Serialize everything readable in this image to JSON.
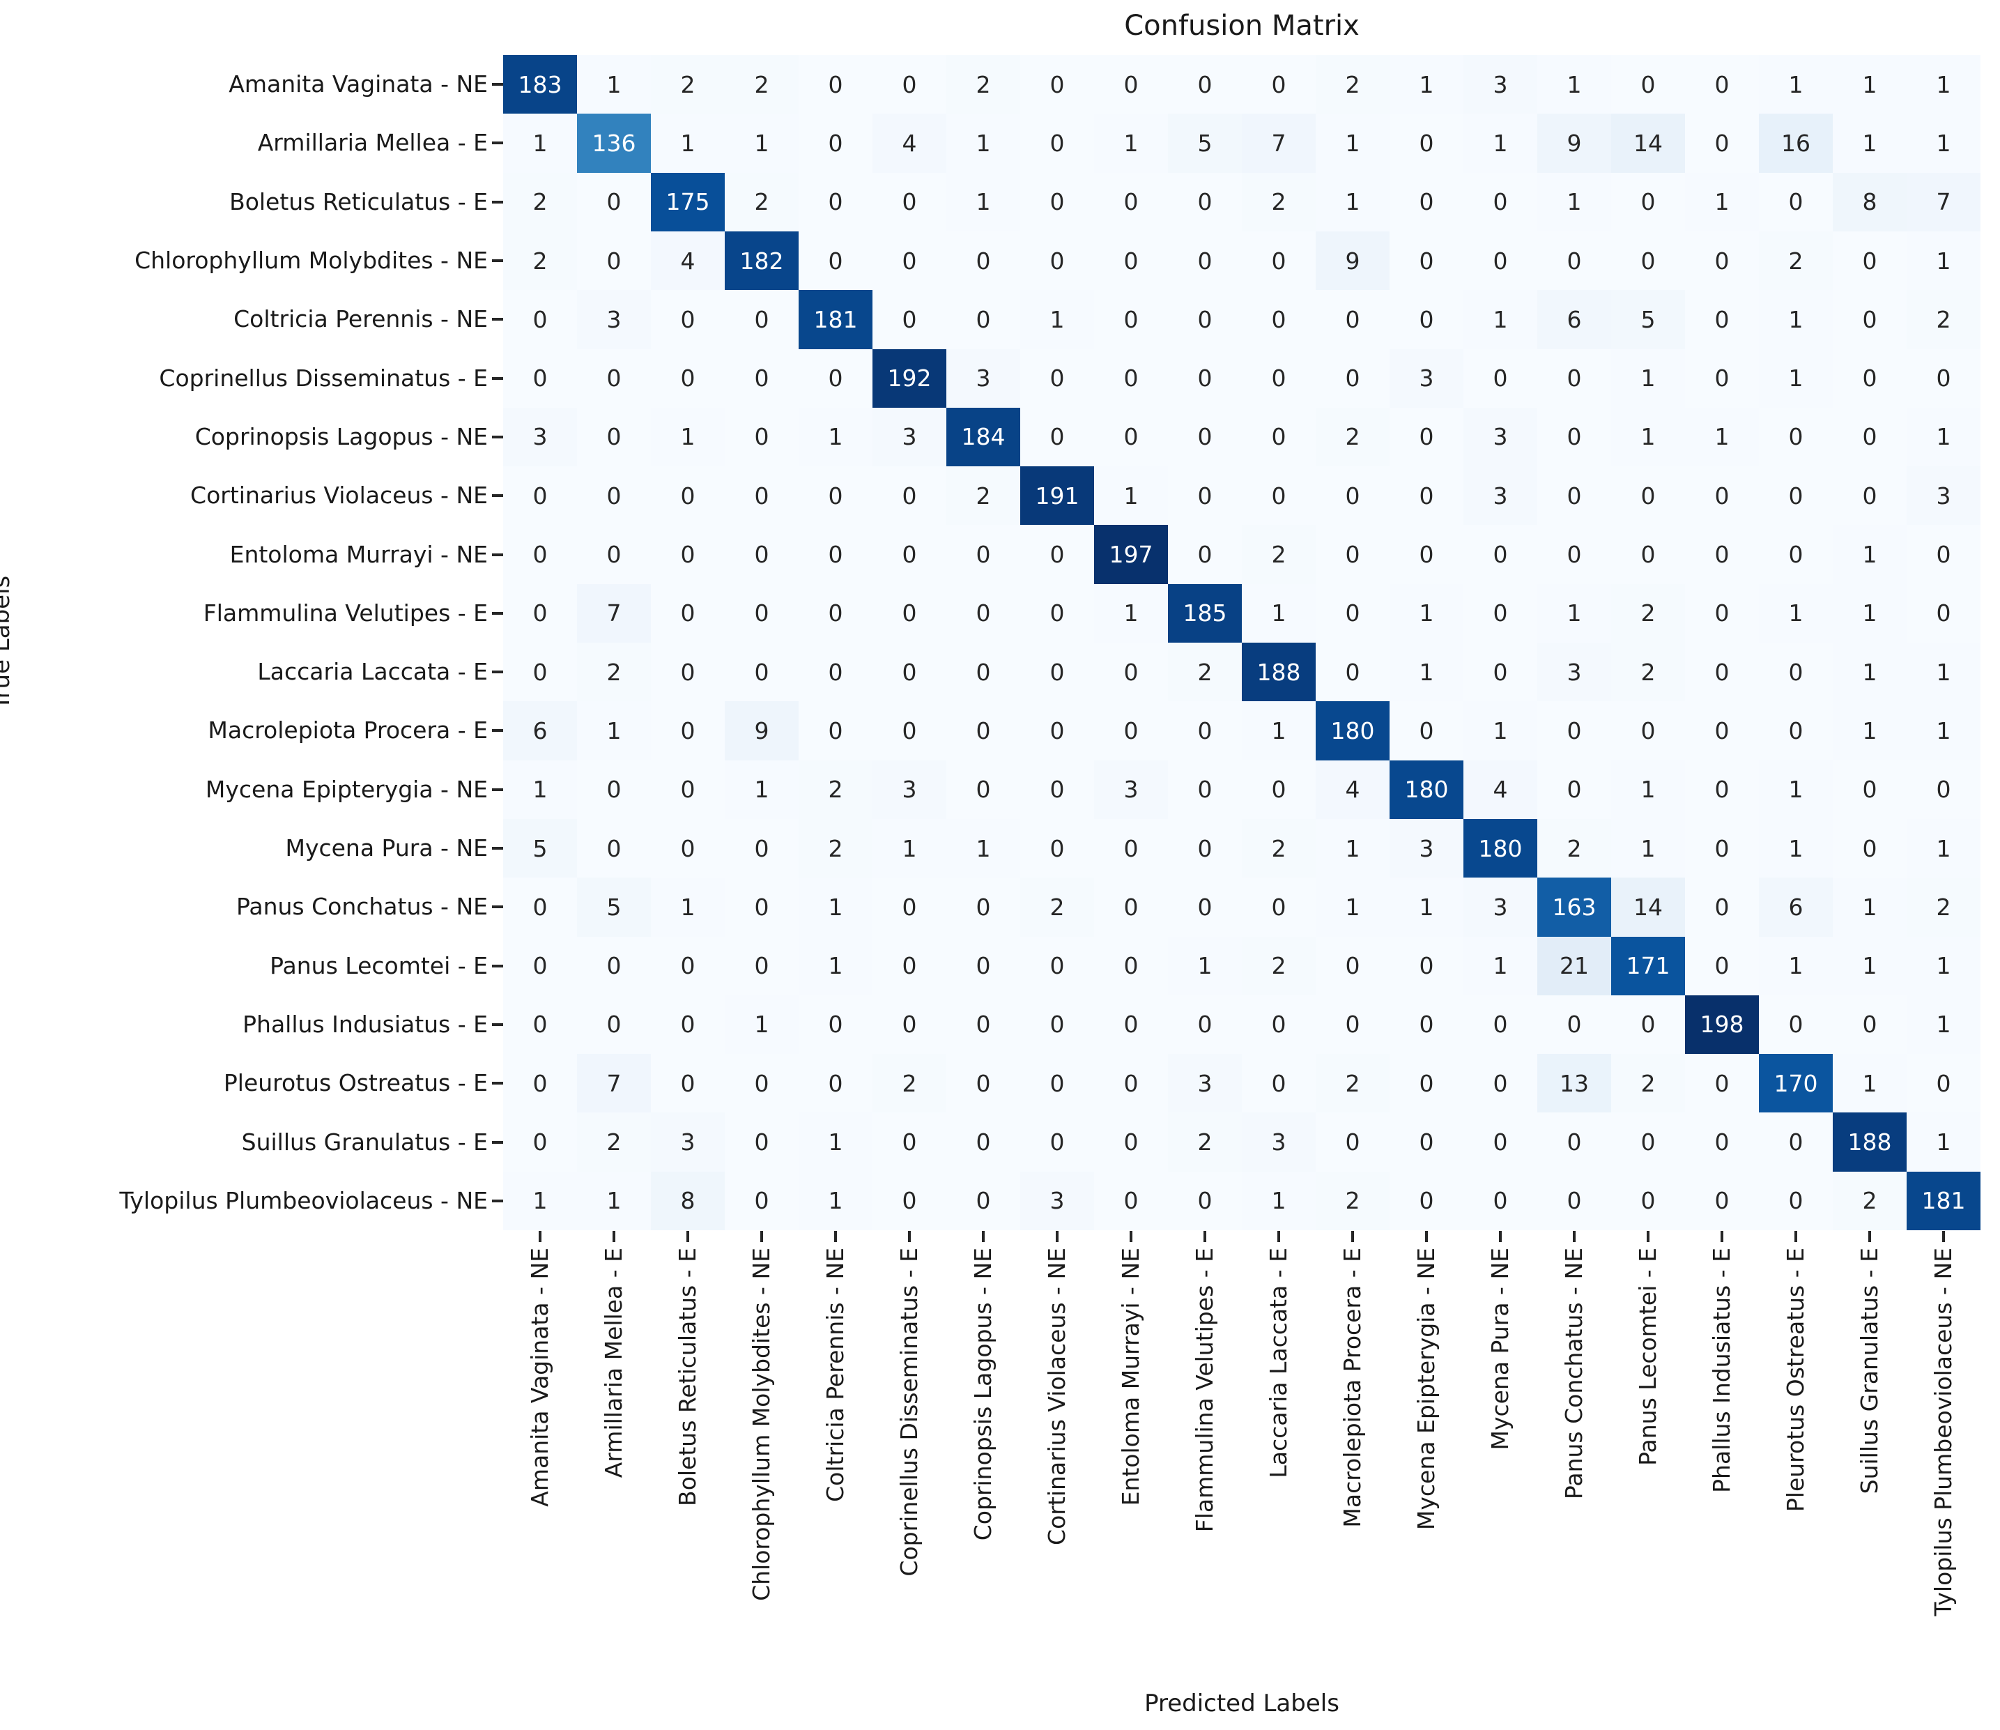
{
  "title": "Confusion Matrix",
  "axes": {
    "x_label": "Predicted Labels",
    "y_label": "True Labels"
  },
  "colors": {
    "background": "#ffffff",
    "title_text": "#1a1a1a",
    "tick_label_text": "#1a1a1a",
    "tick_mark": "#262626",
    "annotation_dark": "#262626",
    "annotation_light": "#ffffff",
    "cmap_stops": [
      [
        0.0,
        "#f7fbff"
      ],
      [
        0.125,
        "#deebf7"
      ],
      [
        0.25,
        "#c6dbef"
      ],
      [
        0.375,
        "#9ecae1"
      ],
      [
        0.5,
        "#6baed6"
      ],
      [
        0.625,
        "#4292c6"
      ],
      [
        0.75,
        "#2171b5"
      ],
      [
        0.875,
        "#08519c"
      ],
      [
        1.0,
        "#08306b"
      ]
    ]
  },
  "chart_data": {
    "type": "heatmap",
    "title": "Confusion Matrix",
    "xlabel": "Predicted Labels",
    "ylabel": "True Labels",
    "colormap": "Blues",
    "colorbar": false,
    "annotated": true,
    "x_tick_rotation": 90,
    "vmin": 0,
    "vmax": 198,
    "categories": [
      "Amanita Vaginata - NE",
      "Armillaria Mellea - E",
      "Boletus Reticulatus - E",
      "Chlorophyllum Molybdites - NE",
      "Coltricia Perennis - NE",
      "Coprinellus Disseminatus - E",
      "Coprinopsis Lagopus - NE",
      "Cortinarius Violaceus - NE",
      "Entoloma Murrayi - NE",
      "Flammulina Velutipes - E",
      "Laccaria Laccata - E",
      "Macrolepiota Procera - E",
      "Mycena Epipterygia - NE",
      "Mycena Pura - NE",
      "Panus Conchatus - NE",
      "Panus Lecomtei - E",
      "Phallus Indusiatus - E",
      "Pleurotus Ostreatus - E",
      "Suillus Granulatus - E",
      "Tylopilus Plumbeoviolaceus - NE"
    ],
    "matrix": [
      [
        183,
        1,
        2,
        2,
        0,
        0,
        2,
        0,
        0,
        0,
        0,
        2,
        1,
        3,
        1,
        0,
        0,
        1,
        1,
        1
      ],
      [
        1,
        136,
        1,
        1,
        0,
        4,
        1,
        0,
        1,
        5,
        7,
        1,
        0,
        1,
        9,
        14,
        0,
        16,
        1,
        1
      ],
      [
        2,
        0,
        175,
        2,
        0,
        0,
        1,
        0,
        0,
        0,
        2,
        1,
        0,
        0,
        1,
        0,
        1,
        0,
        8,
        7
      ],
      [
        2,
        0,
        4,
        182,
        0,
        0,
        0,
        0,
        0,
        0,
        0,
        9,
        0,
        0,
        0,
        0,
        0,
        2,
        0,
        1
      ],
      [
        0,
        3,
        0,
        0,
        181,
        0,
        0,
        1,
        0,
        0,
        0,
        0,
        0,
        1,
        6,
        5,
        0,
        1,
        0,
        2
      ],
      [
        0,
        0,
        0,
        0,
        0,
        192,
        3,
        0,
        0,
        0,
        0,
        0,
        3,
        0,
        0,
        1,
        0,
        1,
        0,
        0
      ],
      [
        3,
        0,
        1,
        0,
        1,
        3,
        184,
        0,
        0,
        0,
        0,
        2,
        0,
        3,
        0,
        1,
        1,
        0,
        0,
        1
      ],
      [
        0,
        0,
        0,
        0,
        0,
        0,
        2,
        191,
        1,
        0,
        0,
        0,
        0,
        3,
        0,
        0,
        0,
        0,
        0,
        3
      ],
      [
        0,
        0,
        0,
        0,
        0,
        0,
        0,
        0,
        197,
        0,
        2,
        0,
        0,
        0,
        0,
        0,
        0,
        0,
        1,
        0
      ],
      [
        0,
        7,
        0,
        0,
        0,
        0,
        0,
        0,
        1,
        185,
        1,
        0,
        1,
        0,
        1,
        2,
        0,
        1,
        1,
        0
      ],
      [
        0,
        2,
        0,
        0,
        0,
        0,
        0,
        0,
        0,
        2,
        188,
        0,
        1,
        0,
        3,
        2,
        0,
        0,
        1,
        1
      ],
      [
        6,
        1,
        0,
        9,
        0,
        0,
        0,
        0,
        0,
        0,
        1,
        180,
        0,
        1,
        0,
        0,
        0,
        0,
        1,
        1
      ],
      [
        1,
        0,
        0,
        1,
        2,
        3,
        0,
        0,
        3,
        0,
        0,
        4,
        180,
        4,
        0,
        1,
        0,
        1,
        0,
        0
      ],
      [
        5,
        0,
        0,
        0,
        2,
        1,
        1,
        0,
        0,
        0,
        2,
        1,
        3,
        180,
        2,
        1,
        0,
        1,
        0,
        1
      ],
      [
        0,
        5,
        1,
        0,
        1,
        0,
        0,
        2,
        0,
        0,
        0,
        1,
        1,
        3,
        163,
        14,
        0,
        6,
        1,
        2
      ],
      [
        0,
        0,
        0,
        0,
        1,
        0,
        0,
        0,
        0,
        1,
        2,
        0,
        0,
        1,
        21,
        171,
        0,
        1,
        1,
        1
      ],
      [
        0,
        0,
        0,
        1,
        0,
        0,
        0,
        0,
        0,
        0,
        0,
        0,
        0,
        0,
        0,
        0,
        198,
        0,
        0,
        1
      ],
      [
        0,
        7,
        0,
        0,
        0,
        2,
        0,
        0,
        0,
        3,
        0,
        2,
        0,
        0,
        13,
        2,
        0,
        170,
        1,
        0
      ],
      [
        0,
        2,
        3,
        0,
        1,
        0,
        0,
        0,
        0,
        2,
        3,
        0,
        0,
        0,
        0,
        0,
        0,
        0,
        188,
        1
      ],
      [
        1,
        1,
        8,
        0,
        1,
        0,
        0,
        3,
        0,
        0,
        1,
        2,
        0,
        0,
        0,
        0,
        0,
        0,
        2,
        181
      ]
    ]
  }
}
